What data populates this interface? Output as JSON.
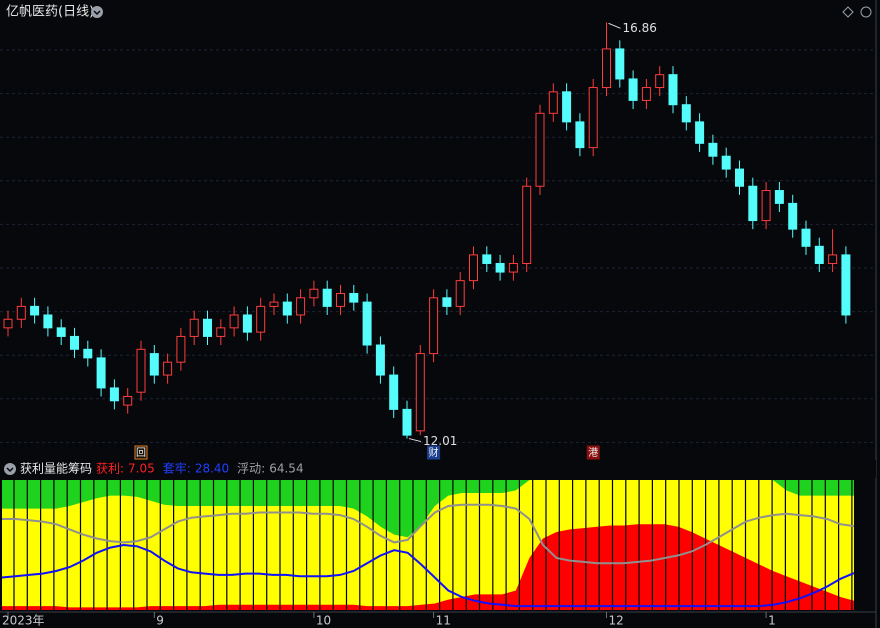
{
  "chart_data": [
    {
      "type": "candlestick",
      "title": "亿帆医药(日线)",
      "categories": [
        "2023年",
        null,
        null,
        null,
        null,
        null,
        null,
        null,
        null,
        null,
        null,
        "9",
        null,
        null,
        null,
        null,
        null,
        null,
        null,
        null,
        null,
        null,
        null,
        "10",
        null,
        null,
        null,
        null,
        null,
        null,
        null,
        null,
        "11",
        null,
        null,
        null,
        null,
        null,
        null,
        null,
        null,
        null,
        null,
        null,
        null,
        "12",
        null,
        null,
        null,
        null,
        null,
        null,
        null,
        null,
        null,
        null,
        null,
        "1",
        null,
        null,
        null,
        null,
        null,
        null
      ],
      "open": [
        13.3,
        13.4,
        13.55,
        13.45,
        13.3,
        13.2,
        13.05,
        12.95,
        12.6,
        12.4,
        12.55,
        13.0,
        12.75,
        12.9,
        13.2,
        13.4,
        13.2,
        13.3,
        13.45,
        13.25,
        13.55,
        13.6,
        13.45,
        13.65,
        13.75,
        13.55,
        13.7,
        13.6,
        13.1,
        12.75,
        12.35,
        12.1,
        13.0,
        13.65,
        13.55,
        13.85,
        14.15,
        14.05,
        13.95,
        14.05,
        14.95,
        15.8,
        16.05,
        15.7,
        15.4,
        16.1,
        16.55,
        16.2,
        15.95,
        16.1,
        16.25,
        15.9,
        15.7,
        15.45,
        15.3,
        15.15,
        14.95,
        14.55,
        14.9,
        14.75,
        14.45,
        14.25,
        14.05,
        14.15
      ],
      "high": [
        13.5,
        13.65,
        13.65,
        13.55,
        13.4,
        13.3,
        13.15,
        13.05,
        12.7,
        12.6,
        13.15,
        13.1,
        13.0,
        13.3,
        13.5,
        13.5,
        13.4,
        13.55,
        13.55,
        13.65,
        13.7,
        13.7,
        13.75,
        13.85,
        13.85,
        13.8,
        13.8,
        13.7,
        13.2,
        12.85,
        12.45,
        13.1,
        13.75,
        13.75,
        13.95,
        14.25,
        14.25,
        14.15,
        14.15,
        15.05,
        15.9,
        16.15,
        16.15,
        15.8,
        16.2,
        16.86,
        16.65,
        16.3,
        16.2,
        16.35,
        16.35,
        16.0,
        15.8,
        15.55,
        15.4,
        15.25,
        15.05,
        15.0,
        15.0,
        14.85,
        14.55,
        14.35,
        14.45,
        14.25
      ],
      "low": [
        13.2,
        13.3,
        13.35,
        13.2,
        13.1,
        12.95,
        12.85,
        12.5,
        12.35,
        12.3,
        12.45,
        12.65,
        12.65,
        12.8,
        13.1,
        13.1,
        13.1,
        13.2,
        13.15,
        13.15,
        13.45,
        13.35,
        13.35,
        13.55,
        13.45,
        13.45,
        13.5,
        13.0,
        12.65,
        12.25,
        12.01,
        12.05,
        12.9,
        13.45,
        13.45,
        13.75,
        13.95,
        13.85,
        13.85,
        13.95,
        14.85,
        15.7,
        15.6,
        15.3,
        15.3,
        16.0,
        16.1,
        15.85,
        15.85,
        16.0,
        15.8,
        15.6,
        15.35,
        15.2,
        15.05,
        14.85,
        14.45,
        14.45,
        14.65,
        14.35,
        14.15,
        13.95,
        13.95,
        13.35
      ],
      "close": [
        13.4,
        13.55,
        13.45,
        13.3,
        13.2,
        13.05,
        12.95,
        12.6,
        12.45,
        12.5,
        13.05,
        12.75,
        12.9,
        13.2,
        13.4,
        13.2,
        13.3,
        13.45,
        13.25,
        13.55,
        13.6,
        13.45,
        13.65,
        13.75,
        13.55,
        13.7,
        13.6,
        13.1,
        12.75,
        12.35,
        12.05,
        13.0,
        13.65,
        13.55,
        13.85,
        14.15,
        14.05,
        13.95,
        14.05,
        14.95,
        15.8,
        16.05,
        15.7,
        15.4,
        16.1,
        16.55,
        16.2,
        15.95,
        16.1,
        16.25,
        15.9,
        15.7,
        15.45,
        15.3,
        15.15,
        14.95,
        14.55,
        14.9,
        14.75,
        14.45,
        14.25,
        14.05,
        14.15,
        13.45
      ],
      "up_color": "#ff3c3c",
      "down_color": "#54fcfc",
      "ylim": [
        11.9,
        17.12
      ],
      "markers": [
        null,
        null,
        null,
        null,
        null,
        null,
        null,
        null,
        null,
        null,
        "回",
        null,
        null,
        null,
        null,
        null,
        null,
        null,
        null,
        null,
        null,
        null,
        null,
        null,
        null,
        null,
        null,
        null,
        null,
        null,
        null,
        null,
        "财",
        null,
        null,
        null,
        null,
        null,
        null,
        null,
        null,
        null,
        null,
        null,
        "港",
        null,
        null,
        null,
        null,
        null,
        null,
        null,
        null,
        null,
        null,
        null,
        null,
        null,
        null,
        null,
        null,
        null,
        null,
        null
      ]
    },
    {
      "type": "indicator",
      "title": "获利量能筹码",
      "ylim": [
        0,
        100
      ],
      "series": [
        {
          "name": "获利:",
          "value_label": "7.05",
          "color": "#ff0000",
          "values": [
            3,
            3,
            3,
            3,
            3,
            2,
            2,
            2,
            2,
            2,
            2,
            3,
            3,
            3,
            3,
            3,
            4,
            4,
            4,
            4,
            4,
            4,
            4,
            4,
            4,
            4,
            4,
            3,
            3,
            3,
            3,
            4,
            5,
            8,
            10,
            12,
            12,
            12,
            15,
            40,
            55,
            60,
            62,
            63,
            64,
            65,
            65,
            66,
            66,
            66,
            64,
            60,
            55,
            50,
            45,
            40,
            35,
            30,
            26,
            22,
            18,
            14,
            10,
            7.05
          ]
        },
        {
          "name": "套牢:",
          "value_label": "28.40",
          "color": "#1010ff",
          "values": [
            25,
            26,
            27,
            28,
            30,
            33,
            38,
            44,
            48,
            50,
            49,
            45,
            38,
            32,
            29,
            28,
            27,
            27,
            28,
            28,
            27,
            27,
            26,
            26,
            26,
            27,
            30,
            36,
            42,
            46,
            44,
            35,
            25,
            15,
            10,
            7,
            5,
            4,
            3,
            3,
            3,
            3,
            3,
            3,
            3,
            3,
            3,
            3,
            3,
            3,
            3,
            3,
            3,
            3,
            3,
            3,
            3,
            4,
            6,
            9,
            13,
            18,
            24,
            28.4
          ]
        },
        {
          "name": "浮动:",
          "value_label": "64.54",
          "color": "#909090",
          "values": [
            70,
            70,
            69,
            68,
            66,
            62,
            58,
            55,
            53,
            52,
            53,
            56,
            62,
            68,
            71,
            72,
            73,
            74,
            74,
            75,
            75,
            75,
            75,
            74,
            74,
            73,
            70,
            64,
            57,
            52,
            54,
            65,
            75,
            80,
            81,
            81,
            81,
            80,
            78,
            70,
            50,
            40,
            38,
            37,
            36,
            36,
            36,
            37,
            38,
            40,
            42,
            45,
            50,
            56,
            62,
            68,
            71,
            73,
            74,
            73,
            72,
            70,
            66,
            64.54
          ]
        },
        {
          "color": "#1ed21e",
          "values": [
            78,
            78,
            78,
            78,
            78,
            80,
            83,
            86,
            88,
            88,
            87,
            84,
            81,
            80,
            80,
            80,
            80,
            80,
            80,
            80,
            80,
            80,
            80,
            80,
            80,
            80,
            78,
            72,
            64,
            58,
            56,
            65,
            80,
            88,
            90,
            90,
            90,
            90,
            92,
            100,
            100,
            100,
            100,
            100,
            100,
            100,
            100,
            100,
            100,
            100,
            100,
            100,
            100,
            100,
            100,
            100,
            100,
            100,
            92,
            88,
            88,
            88,
            88,
            88
          ]
        }
      ]
    }
  ]
}
